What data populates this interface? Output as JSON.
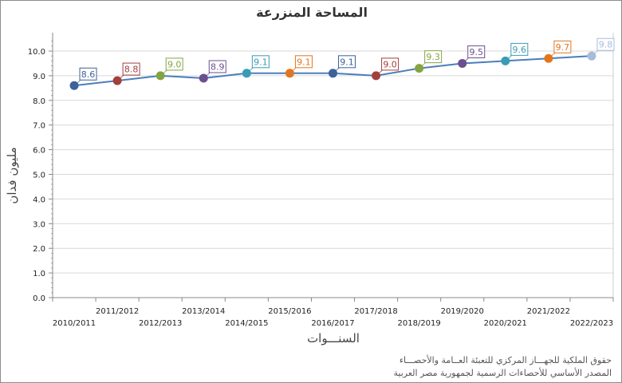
{
  "chart_data": {
    "type": "line",
    "title": "المساحة المنزرعة",
    "xlabel": "السنـــوات",
    "ylabel": "مليون فدان",
    "categories": [
      "2010/2011",
      "2011/2012",
      "2012/2013",
      "2013/2014",
      "2014/2015",
      "2015/2016",
      "2016/2017",
      "2017/2018",
      "2018/2019",
      "2019/2020",
      "2020/2021",
      "2021/2022",
      "2022/2023"
    ],
    "values": [
      8.6,
      8.8,
      9.0,
      8.9,
      9.1,
      9.1,
      9.1,
      9.0,
      9.3,
      9.5,
      9.6,
      9.7,
      9.8
    ],
    "data_labels": [
      "8.6",
      "8.8",
      "9.0",
      "8.9",
      "9.1",
      "9.1",
      "9.1",
      "9.0",
      "9.3",
      "9.5",
      "9.6",
      "9.7",
      "9.8"
    ],
    "ylim": [
      0,
      10.5
    ],
    "yticks": [
      "0.0",
      "1.0",
      "2.0",
      "3.0",
      "4.0",
      "5.0",
      "6.0",
      "7.0",
      "8.0",
      "9.0",
      "10.0"
    ],
    "grid": true,
    "line_color": "#4a7ebb",
    "point_colors": [
      "#3d6199",
      "#a33f3c",
      "#85a342",
      "#6b4f8e",
      "#3a9bb5",
      "#e2761f",
      "#3d6199",
      "#a33f3c",
      "#85a342",
      "#6b4f8e",
      "#3a9bb5",
      "#e2761f",
      "#a7bcd9"
    ]
  },
  "footer": {
    "line1": "حقوق الملكية للجهـــاز المركزي للتعبئة العــامة والأحصـــاء",
    "line2": "المصدر الأساسي للأحصاءات الرسمية لجمهورية مصر العربية"
  }
}
